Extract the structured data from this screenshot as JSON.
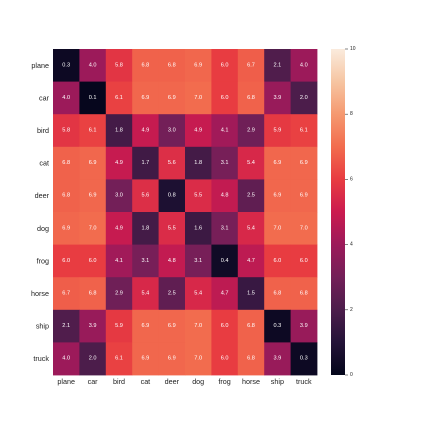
{
  "chart_data": {
    "type": "heatmap",
    "title": "",
    "xlabel": "",
    "ylabel": "",
    "rows": [
      "plane",
      "car",
      "bird",
      "cat",
      "deer",
      "dog",
      "frog",
      "horse",
      "ship",
      "truck"
    ],
    "cols": [
      "plane",
      "car",
      "bird",
      "cat",
      "deer",
      "dog",
      "frog",
      "horse",
      "ship",
      "truck"
    ],
    "values": [
      [
        0.3,
        4.0,
        5.8,
        6.8,
        6.8,
        6.9,
        6.0,
        6.7,
        2.1,
        4.0
      ],
      [
        4.0,
        0.1,
        6.1,
        6.9,
        6.9,
        7.0,
        6.0,
        6.8,
        3.9,
        2.0
      ],
      [
        5.8,
        6.1,
        1.8,
        4.9,
        3.0,
        4.9,
        4.1,
        2.9,
        5.9,
        6.1
      ],
      [
        6.8,
        6.9,
        4.9,
        1.7,
        5.6,
        1.8,
        3.1,
        5.4,
        6.9,
        6.9
      ],
      [
        6.8,
        6.9,
        3.0,
        5.6,
        0.8,
        5.5,
        4.8,
        2.5,
        6.9,
        6.9
      ],
      [
        6.9,
        7.0,
        4.9,
        1.8,
        5.5,
        1.6,
        3.1,
        5.4,
        7.0,
        7.0
      ],
      [
        6.0,
        6.0,
        4.1,
        3.1,
        4.8,
        3.1,
        0.4,
        4.7,
        6.0,
        6.0
      ],
      [
        6.7,
        6.8,
        2.9,
        5.4,
        2.5,
        5.4,
        4.7,
        1.5,
        6.8,
        6.8
      ],
      [
        2.1,
        3.9,
        5.9,
        6.9,
        6.9,
        7.0,
        6.0,
        6.8,
        0.3,
        3.9
      ],
      [
        4.0,
        2.0,
        6.1,
        6.9,
        6.9,
        7.0,
        6.0,
        6.8,
        3.9,
        0.3
      ]
    ],
    "value_format": "0.0",
    "colormap": "rocket",
    "color_range": [
      0,
      10
    ],
    "colorbar_ticks": [
      0,
      2,
      4,
      6,
      8,
      10
    ],
    "colorbar_placement": "right",
    "grid": false
  }
}
